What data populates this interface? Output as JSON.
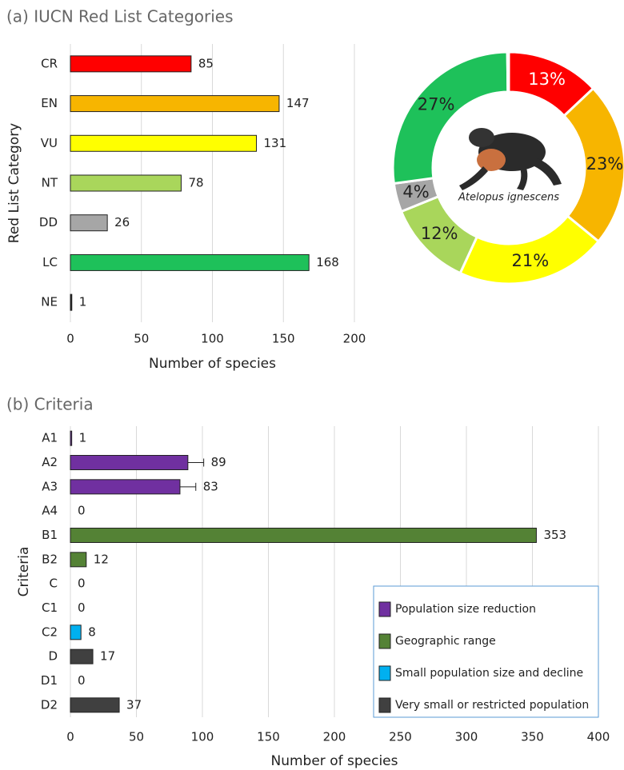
{
  "chart_data": [
    {
      "type": "bar",
      "orientation": "horizontal",
      "title": "(a) IUCN Red List Categories",
      "x_label": "Number of species",
      "y_label": "Red List Category",
      "categories": [
        "CR",
        "EN",
        "VU",
        "NT",
        "DD",
        "LC",
        "NE"
      ],
      "values": [
        85,
        147,
        131,
        78,
        26,
        168,
        1
      ],
      "colors": [
        "#ff0000",
        "#f7b500",
        "#ffff00",
        "#a9d65b",
        "#a6a6a6",
        "#1ec15a",
        "#222222"
      ],
      "xlim": [
        0,
        200
      ],
      "xticks": [
        0,
        50,
        100,
        150,
        200
      ],
      "grid": true
    },
    {
      "type": "pie",
      "donut": true,
      "center_label": "Atelopus ignescens",
      "values": [
        13,
        23,
        21,
        12,
        4,
        27,
        0.2
      ],
      "value_labels": [
        "13%",
        "23%",
        "21%",
        "12%",
        "4%",
        "27%",
        null
      ],
      "colors": [
        "#ff0000",
        "#f7b500",
        "#ffff00",
        "#a9d65b",
        "#a6a6a6",
        "#1ec15a",
        "#222222"
      ]
    },
    {
      "type": "bar",
      "orientation": "horizontal",
      "title": "(b) Criteria",
      "x_label": "Number of species",
      "y_label": "Criteria",
      "categories": [
        "A1",
        "A2",
        "A3",
        "A4",
        "B1",
        "B2",
        "C",
        "C1",
        "C2",
        "D",
        "D1",
        "D2"
      ],
      "values": [
        1,
        89,
        83,
        0,
        353,
        12,
        0,
        0,
        8,
        17,
        0,
        37
      ],
      "errors": [
        null,
        12,
        12,
        null,
        null,
        null,
        null,
        null,
        null,
        null,
        null,
        null
      ],
      "colors": [
        "#7030a0",
        "#7030a0",
        "#7030a0",
        "#7030a0",
        "#548235",
        "#548235",
        "#00b0f0",
        "#00b0f0",
        "#00b0f0",
        "#404040",
        "#404040",
        "#404040"
      ],
      "xlim": [
        0,
        400
      ],
      "xticks": [
        0,
        50,
        100,
        150,
        200,
        250,
        300,
        350,
        400
      ],
      "grid": true,
      "legend_position": "bottom-right",
      "legend": [
        {
          "name": "Population size reduction",
          "color": "#7030a0"
        },
        {
          "name": "Geographic range",
          "color": "#548235"
        },
        {
          "name": "Small population size and decline",
          "color": "#00b0f0"
        },
        {
          "name": "Very small or restricted population",
          "color": "#404040"
        }
      ]
    }
  ]
}
